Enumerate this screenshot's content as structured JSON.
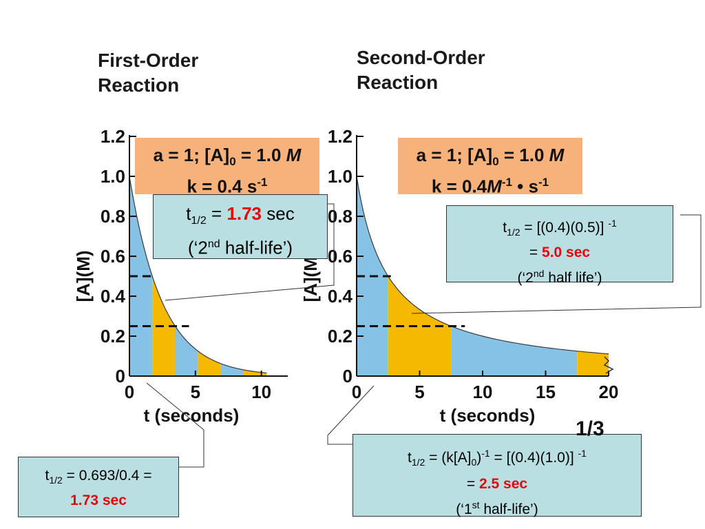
{
  "chart_data": [
    {
      "type": "area",
      "title": "First-Order Reaction",
      "xlabel": "t (seconds)",
      "ylabel": "[A](M)",
      "xlim": [
        0,
        12
      ],
      "ylim": [
        0,
        1.2
      ],
      "xticks": [
        "0",
        "5",
        "10"
      ],
      "yticks": [
        "0",
        "0.2",
        "0.4",
        "0.6",
        "0.8",
        "1.0",
        "1.2"
      ],
      "conditions": [
        "a = 1; [A]0 = 1.0 M",
        "k = 0.4 s-1"
      ],
      "rate_constant": 0.4,
      "initial_concentration": 1.0,
      "curve": "[A] = 1.0 * exp(-0.4 t)",
      "half_life_boundaries": [
        0,
        1.73,
        3.47,
        5.2,
        6.93,
        8.66,
        10.4
      ],
      "band_colors": [
        "#86c1e6",
        "#f4b900",
        "#86c1e6",
        "#f4b900",
        "#86c1e6",
        "#f4b900"
      ],
      "dashed_levels": [
        0.5,
        0.25
      ],
      "grid": false
    },
    {
      "type": "area",
      "title": "Second-Order Reaction",
      "xlabel": "t (seconds)",
      "ylabel": "[A](M)",
      "xlim": [
        0,
        20
      ],
      "ylim": [
        0,
        1.2
      ],
      "xticks": [
        "0",
        "5",
        "10",
        "15",
        "20"
      ],
      "yticks": [
        "0",
        "0.2",
        "0.4",
        "0.6",
        "0.8",
        "1.0",
        "1.2"
      ],
      "conditions": [
        "a = 1; [A]0 = 1.0 M",
        "k = 0.4 M-1 · s-1"
      ],
      "rate_constant": 0.4,
      "initial_concentration": 1.0,
      "curve": "[A] = 1.0 / (1 + 0.4 t)",
      "half_life_boundaries": [
        0,
        2.5,
        7.5,
        17.5,
        20
      ],
      "band_colors": [
        "#86c1e6",
        "#f4b900",
        "#86c1e6",
        "#f4b900"
      ],
      "dashed_levels": [
        0.5,
        0.25
      ],
      "grid": false
    }
  ],
  "headings": {
    "first_line1": "First-Order",
    "first_line2": "Reaction",
    "second_line1": "Second-Order",
    "second_line2": "Reaction"
  },
  "conditions_first": {
    "line1_pre": "a = 1; [A]",
    "sub0": "0",
    "line1_post": " = 1.0 ",
    "unit_m": "M",
    "line2_pre": "k = 0.4 s",
    "sup": "-1"
  },
  "conditions_second": {
    "line1_pre": "a = 1; [A]",
    "sub0": "0",
    "line1_post": " = 1.0 ",
    "unit_m": "M",
    "line2_pre": "k = 0.4",
    "unit_m2": "M",
    "sup1": "-1",
    "line2_mid": " • s",
    "sup2": "-1"
  },
  "callout_first_2nd": {
    "t": "t",
    "sub": "1/2",
    "eq": " = ",
    "value": "1.73",
    "unit": " sec",
    "line2_pre": "(‘2",
    "line2_sup": "nd",
    "line2_post": " half-life’)"
  },
  "callout_first_1st": {
    "t": "t",
    "sub": "1/2",
    "eq": " = 0.693/0.4 = ",
    "value": "1.73 sec"
  },
  "callout_second_2nd": {
    "t": "t",
    "sub": "1/2",
    "eq": " = [(0.4)(0.5)] ",
    "sup": "-1",
    "line2_pre": "= ",
    "value": "5.0 sec",
    "line3_pre": "(‘2",
    "line3_sup": "nd",
    "line3_post": " half life’)"
  },
  "callout_second_1st": {
    "t": "t",
    "sub": "1/2",
    "eq_a": " = (k[A]",
    "sub0": "0",
    "eq_b": ")",
    "sup1": "-1",
    "eq_c": " = [(0.4)(1.0)] ",
    "sup2": "-1",
    "line2_pre": "= ",
    "value": "2.5 sec",
    "line3_pre": "(‘1",
    "line3_sup": "st",
    "line3_post": " half-life’)"
  },
  "page_number": "1/3"
}
